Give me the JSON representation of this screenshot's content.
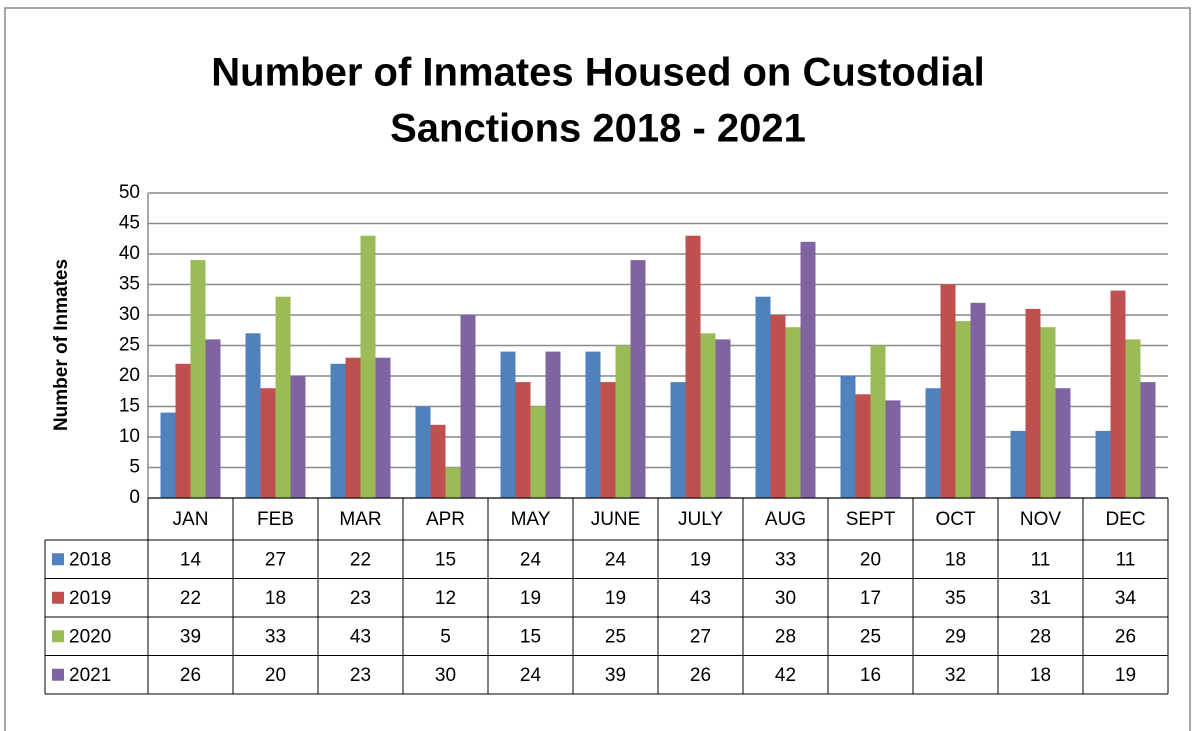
{
  "chart_data": {
    "type": "bar",
    "title": [
      "Number of Inmates Housed on Custodial",
      "Sanctions 2018 - 2021"
    ],
    "y_label": "Number of Inmates",
    "categories": [
      "JAN",
      "FEB",
      "MAR",
      "APR",
      "MAY",
      "JUNE",
      "JULY",
      "AUG",
      "SEPT",
      "OCT",
      "NOV",
      "DEC"
    ],
    "series": [
      {
        "name": "2018",
        "color": "#4f81bd",
        "values": [
          14,
          27,
          22,
          15,
          24,
          24,
          19,
          33,
          20,
          18,
          11,
          11
        ]
      },
      {
        "name": "2019",
        "color": "#c0504d",
        "values": [
          22,
          18,
          23,
          12,
          19,
          19,
          43,
          30,
          17,
          35,
          31,
          34
        ]
      },
      {
        "name": "2020",
        "color": "#9bbb59",
        "values": [
          39,
          33,
          43,
          5,
          15,
          25,
          27,
          28,
          25,
          29,
          28,
          26
        ]
      },
      {
        "name": "2021",
        "color": "#8064a2",
        "values": [
          26,
          20,
          23,
          30,
          24,
          39,
          26,
          42,
          16,
          32,
          18,
          19
        ]
      }
    ],
    "ylim": [
      0,
      50
    ],
    "yticks": [
      0,
      5,
      10,
      15,
      20,
      25,
      30,
      35,
      40,
      45,
      50
    ],
    "grid": true
  }
}
